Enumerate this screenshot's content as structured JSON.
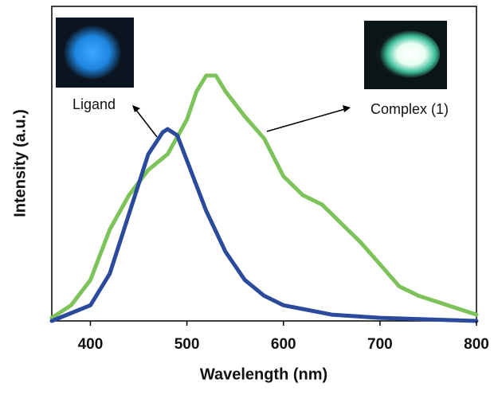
{
  "chart_data": {
    "type": "line",
    "xlabel": "Wavelength (nm)",
    "ylabel": "Intensity (a.u.)",
    "xlim": [
      360,
      800
    ],
    "ylim": [
      0,
      1
    ],
    "xticks": [
      400,
      500,
      600,
      700,
      800
    ],
    "annotations": [
      "Ligand",
      "Complex (1)"
    ],
    "series": [
      {
        "color": "#2b4a9c",
        "x": [
          360,
          400,
          420,
          440,
          460,
          475,
          480,
          490,
          500,
          520,
          540,
          560,
          580,
          600,
          650,
          700,
          800
        ],
        "values": [
          0.0,
          0.05,
          0.15,
          0.34,
          0.53,
          0.6,
          0.61,
          0.59,
          0.51,
          0.35,
          0.22,
          0.13,
          0.08,
          0.05,
          0.02,
          0.01,
          0.0
        ]
      },
      {
        "color": "#7dc35a",
        "x": [
          360,
          380,
          400,
          420,
          440,
          460,
          480,
          500,
          510,
          520,
          530,
          540,
          560,
          580,
          600,
          620,
          640,
          660,
          680,
          700,
          720,
          740,
          760,
          780,
          800
        ],
        "values": [
          0.01,
          0.05,
          0.13,
          0.29,
          0.4,
          0.48,
          0.53,
          0.64,
          0.73,
          0.78,
          0.78,
          0.73,
          0.65,
          0.58,
          0.46,
          0.4,
          0.37,
          0.31,
          0.25,
          0.18,
          0.11,
          0.08,
          0.06,
          0.04,
          0.02
        ]
      }
    ]
  }
}
